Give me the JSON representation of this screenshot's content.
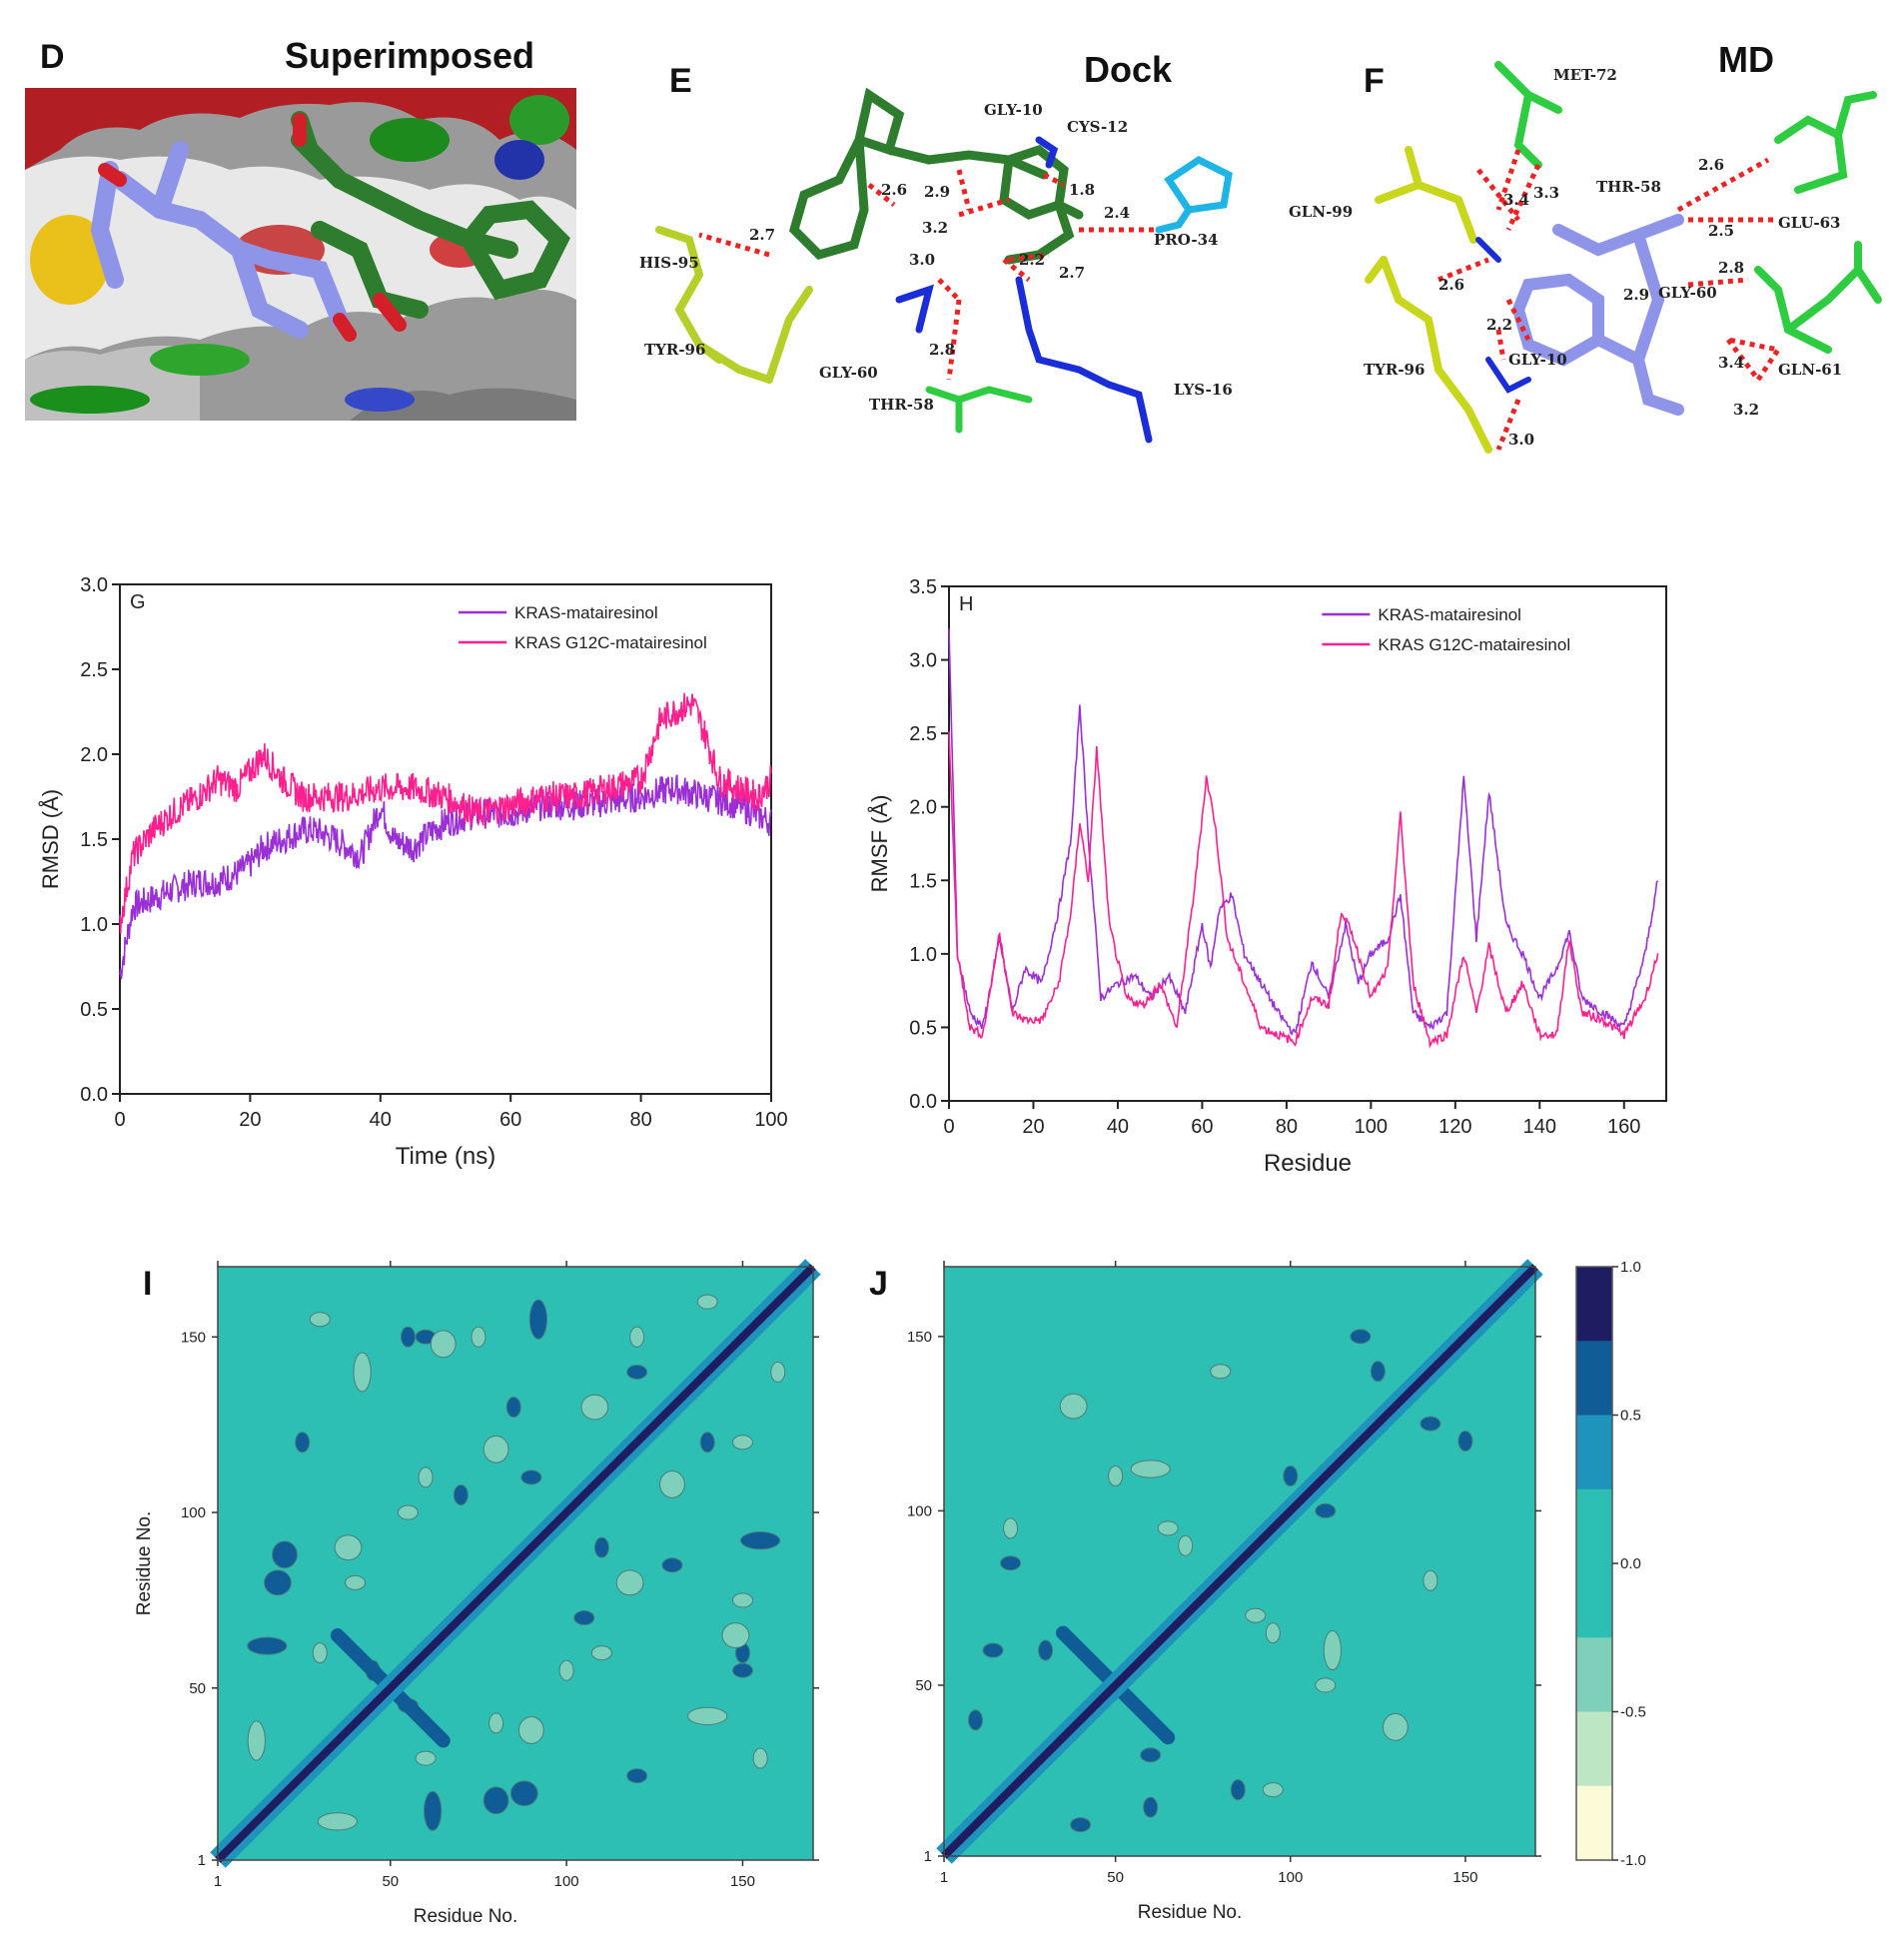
{
  "panels": {
    "d": {
      "letter": "D",
      "title": "Superimposed"
    },
    "e": {
      "letter": "E",
      "title": "Dock",
      "residues": [
        "GLY-10",
        "CYS-12",
        "PRO-34",
        "HIS-95",
        "TYR-96",
        "GLY-60",
        "THR-58",
        "LYS-16"
      ],
      "distances": [
        "2.6",
        "2.9",
        "3.2",
        "1.8",
        "2.4",
        "2.7",
        "3.0",
        "2.2",
        "2.7",
        "2.8"
      ]
    },
    "f": {
      "letter": "F",
      "title": "MD",
      "residues": [
        "MET-72",
        "GLN-99",
        "THR-58",
        "GLU-63",
        "GLY-60",
        "TYR-96",
        "GLY-10",
        "GLN-61"
      ],
      "distances": [
        "3.4",
        "3.3",
        "2.6",
        "2.5",
        "2.8",
        "2.6",
        "2.9",
        "2.2",
        "3.4",
        "3.2",
        "3.0"
      ]
    }
  },
  "colors": {
    "purple": "#9b2fd6",
    "pink": "#ff1f8e",
    "teal": "#2dbfb3",
    "dark_navy": "#24245e"
  },
  "colorbar": {
    "ticks": [
      "1.0",
      "0.5",
      "0.0",
      "-0.5",
      "-1.0"
    ],
    "colors": [
      "#1f1d62",
      "#105c97",
      "#1e93bc",
      "#2dbfb3",
      "#2dbfb3",
      "#7fd0ba",
      "#bde6c4",
      "#fbfbd8"
    ]
  },
  "chart_data": [
    {
      "id": "G",
      "type": "line",
      "panel_letter": "G",
      "xlabel": "Time (ns)",
      "ylabel": "RMSD (Å)",
      "xlim": [
        0,
        100
      ],
      "ylim": [
        0,
        3.0
      ],
      "xticks": [
        "0",
        "20",
        "40",
        "60",
        "80",
        "100"
      ],
      "yticks": [
        "0.0",
        "0.5",
        "1.0",
        "1.5",
        "2.0",
        "2.5",
        "3.0"
      ],
      "legend_position": "top-right",
      "series": [
        {
          "name": "KRAS-matairesinol",
          "color": "#9b2fd6",
          "x": [
            0,
            2,
            5,
            8,
            12,
            15,
            18,
            20,
            22,
            25,
            28,
            30,
            33,
            35,
            37,
            40,
            42,
            45,
            48,
            50,
            55,
            60,
            65,
            70,
            75,
            80,
            85,
            90,
            95,
            100
          ],
          "y": [
            0.7,
            1.1,
            1.15,
            1.2,
            1.25,
            1.25,
            1.3,
            1.35,
            1.45,
            1.5,
            1.55,
            1.55,
            1.5,
            1.45,
            1.4,
            1.7,
            1.5,
            1.45,
            1.55,
            1.6,
            1.65,
            1.65,
            1.7,
            1.7,
            1.72,
            1.75,
            1.8,
            1.75,
            1.7,
            1.6
          ]
        },
        {
          "name": "KRAS G12C-matairesinol",
          "color": "#ff1f8e",
          "x": [
            0,
            2,
            5,
            8,
            12,
            15,
            18,
            20,
            22,
            25,
            28,
            30,
            35,
            40,
            45,
            50,
            55,
            60,
            65,
            70,
            75,
            80,
            83,
            85,
            88,
            90,
            92,
            95,
            98,
            100
          ],
          "y": [
            1.0,
            1.4,
            1.55,
            1.65,
            1.75,
            1.85,
            1.8,
            1.9,
            2.0,
            1.85,
            1.75,
            1.75,
            1.75,
            1.8,
            1.8,
            1.75,
            1.65,
            1.7,
            1.75,
            1.75,
            1.8,
            1.85,
            2.2,
            2.25,
            2.3,
            2.1,
            1.85,
            1.8,
            1.75,
            1.85
          ]
        }
      ]
    },
    {
      "id": "H",
      "type": "line",
      "panel_letter": "H",
      "xlabel": "Residue",
      "ylabel": "RMSF (Å)",
      "xlim": [
        0,
        170
      ],
      "ylim": [
        0,
        3.5
      ],
      "xticks": [
        "0",
        "20",
        "40",
        "60",
        "80",
        "100",
        "120",
        "140",
        "160"
      ],
      "yticks": [
        "0.0",
        "0.5",
        "1.0",
        "1.5",
        "2.0",
        "2.5",
        "3.0",
        "3.5"
      ],
      "legend_position": "top-right",
      "series": [
        {
          "name": "KRAS-matairesinol",
          "color": "#9b2fd6",
          "x": [
            0,
            2,
            5,
            8,
            12,
            15,
            18,
            22,
            26,
            29,
            31,
            33,
            36,
            40,
            44,
            48,
            52,
            56,
            60,
            62,
            64,
            67,
            70,
            74,
            78,
            82,
            86,
            90,
            94,
            97,
            100,
            104,
            107,
            110,
            114,
            118,
            122,
            125,
            128,
            132,
            136,
            140,
            144,
            147,
            150,
            155,
            160,
            165,
            168
          ],
          "y": [
            3.2,
            1.0,
            0.6,
            0.5,
            1.1,
            0.6,
            0.9,
            0.8,
            1.3,
            1.8,
            2.7,
            1.8,
            0.7,
            0.8,
            0.85,
            0.7,
            0.85,
            0.6,
            1.2,
            0.9,
            1.3,
            1.4,
            1.0,
            0.8,
            0.6,
            0.45,
            0.95,
            0.7,
            1.2,
            0.8,
            1.0,
            1.1,
            1.4,
            0.6,
            0.5,
            0.6,
            2.2,
            1.1,
            2.1,
            1.2,
            1.0,
            0.7,
            0.9,
            1.15,
            0.7,
            0.6,
            0.5,
            1.0,
            1.5
          ]
        },
        {
          "name": "KRAS G12C-matairesinol",
          "color": "#ff1f8e",
          "x": [
            0,
            2,
            5,
            8,
            12,
            15,
            18,
            22,
            26,
            29,
            31,
            33,
            35,
            38,
            42,
            46,
            50,
            54,
            58,
            61,
            63,
            66,
            70,
            74,
            78,
            82,
            86,
            90,
            93,
            96,
            100,
            104,
            107,
            110,
            114,
            118,
            122,
            125,
            128,
            132,
            136,
            140,
            144,
            147,
            150,
            155,
            160,
            165,
            168
          ],
          "y": [
            2.5,
            1.0,
            0.5,
            0.45,
            1.15,
            0.6,
            0.55,
            0.55,
            0.8,
            1.3,
            1.9,
            1.5,
            2.4,
            1.2,
            0.7,
            0.65,
            0.8,
            0.5,
            1.4,
            2.2,
            1.9,
            1.1,
            0.8,
            0.5,
            0.45,
            0.4,
            0.7,
            0.65,
            1.3,
            1.1,
            0.7,
            0.9,
            1.95,
            0.8,
            0.4,
            0.45,
            1.0,
            0.6,
            1.05,
            0.6,
            0.8,
            0.45,
            0.45,
            1.1,
            0.6,
            0.55,
            0.45,
            0.7,
            1.0
          ]
        }
      ]
    },
    {
      "id": "I",
      "type": "heatmap",
      "panel_letter": "I",
      "xlabel": "Residue No.",
      "ylabel": "Residue No.",
      "xlim": [
        1,
        170
      ],
      "ylim": [
        1,
        170
      ],
      "xticks": [
        "1",
        "50",
        "100",
        "150"
      ],
      "yticks": [
        "1",
        "50",
        "100",
        "150"
      ],
      "feature": "diagonal +1.0 correlation with cross-shaped positive patch near residue 50 and scattered positive/negative blobs",
      "blobs": [
        {
          "r": 150,
          "c": 60,
          "v": 0.5
        },
        {
          "r": 148,
          "c": 65,
          "v": -0.5
        },
        {
          "r": 140,
          "c": 120,
          "v": 0.5
        },
        {
          "r": 130,
          "c": 130,
          "v": 1.0
        },
        {
          "r": 120,
          "c": 150,
          "v": -0.5
        },
        {
          "r": 118,
          "c": 80,
          "v": -0.5
        },
        {
          "r": 110,
          "c": 90,
          "v": 0.5
        },
        {
          "r": 108,
          "c": 130,
          "v": -0.5
        },
        {
          "r": 100,
          "c": 55,
          "v": -0.5
        },
        {
          "r": 92,
          "c": 155,
          "v": 0.5
        },
        {
          "r": 88,
          "c": 20,
          "v": 0.5
        },
        {
          "r": 85,
          "c": 130,
          "v": 0.5
        },
        {
          "r": 80,
          "c": 40,
          "v": -0.5
        },
        {
          "r": 75,
          "c": 150,
          "v": -0.5
        },
        {
          "r": 70,
          "c": 105,
          "v": 0.5
        },
        {
          "r": 62,
          "c": 15,
          "v": 0.5
        },
        {
          "r": 60,
          "c": 110,
          "v": -0.5
        },
        {
          "r": 55,
          "c": 150,
          "v": 0.5
        },
        {
          "r": 45,
          "c": 55,
          "v": 0.5
        },
        {
          "r": 42,
          "c": 140,
          "v": -0.5
        },
        {
          "r": 38,
          "c": 90,
          "v": -0.5
        },
        {
          "r": 30,
          "c": 60,
          "v": -0.5
        },
        {
          "r": 25,
          "c": 120,
          "v": 0.5
        },
        {
          "r": 18,
          "c": 80,
          "v": 0.5
        },
        {
          "r": 12,
          "c": 35,
          "v": -0.5
        },
        {
          "r": 160,
          "c": 140,
          "v": -0.5
        },
        {
          "r": 155,
          "c": 30,
          "v": -0.5
        }
      ]
    },
    {
      "id": "J",
      "type": "heatmap",
      "panel_letter": "J",
      "xlabel": "Residue No.",
      "ylabel": "",
      "xlim": [
        1,
        170
      ],
      "ylim": [
        1,
        170
      ],
      "xticks": [
        "1",
        "50",
        "100",
        "150"
      ],
      "yticks": [
        "1",
        "50",
        "100",
        "150"
      ],
      "colorbar_range": [
        -1.0,
        1.0
      ],
      "feature": "diagonal +1.0 correlation with cross-shaped positive patch near residue 50 and sparse blobs",
      "blobs": [
        {
          "r": 150,
          "c": 120,
          "v": 0.5
        },
        {
          "r": 140,
          "c": 80,
          "v": -0.5
        },
        {
          "r": 125,
          "c": 140,
          "v": 0.5
        },
        {
          "r": 112,
          "c": 60,
          "v": -0.5
        },
        {
          "r": 100,
          "c": 110,
          "v": 0.5
        },
        {
          "r": 95,
          "c": 65,
          "v": -0.5
        },
        {
          "r": 85,
          "c": 20,
          "v": 0.5
        },
        {
          "r": 70,
          "c": 90,
          "v": -0.5
        },
        {
          "r": 60,
          "c": 15,
          "v": 0.5
        },
        {
          "r": 50,
          "c": 110,
          "v": -0.5
        },
        {
          "r": 38,
          "c": 130,
          "v": -0.5
        },
        {
          "r": 30,
          "c": 60,
          "v": 0.5
        },
        {
          "r": 20,
          "c": 95,
          "v": -0.5
        },
        {
          "r": 10,
          "c": 40,
          "v": 0.5
        }
      ]
    }
  ]
}
